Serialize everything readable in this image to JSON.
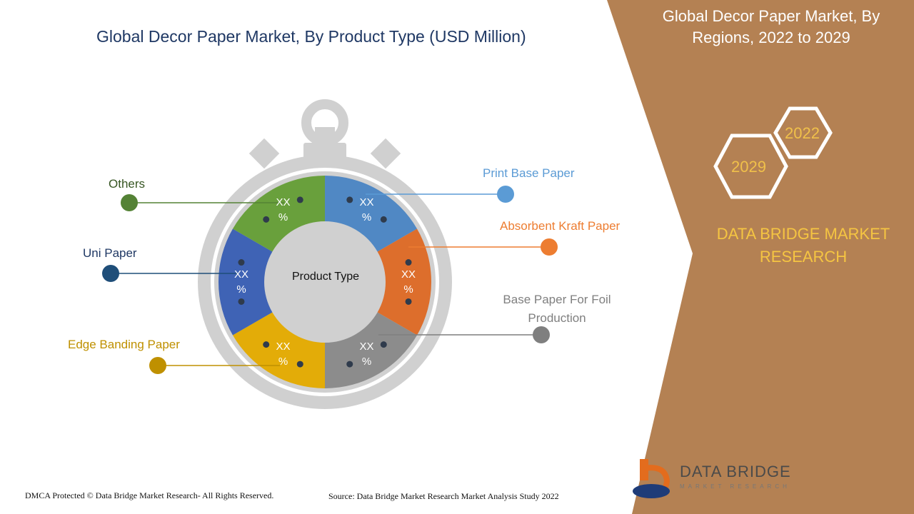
{
  "chart_data": {
    "type": "pie",
    "title": "Global Decor Paper Market, By Product Type (USD Million)",
    "center_label": "Product Type",
    "categories": [
      "Print Base Paper",
      "Absorbent Kraft Paper",
      "Base Paper For Foil Production",
      "Edge Banding Paper",
      "Uni Paper",
      "Others"
    ],
    "values": [
      1,
      1,
      1,
      1,
      1,
      1
    ],
    "value_labels": [
      "XX %",
      "XX %",
      "XX %",
      "XX %",
      "XX %",
      "XX %"
    ],
    "colors": [
      "#5088c4",
      "#dd6e2c",
      "#8c8c8c",
      "#e3ac08",
      "#3f63b5",
      "#69a03c"
    ],
    "legend_colors": [
      "#5b9bd5",
      "#ed7d31",
      "#7f7f7f",
      "#bf9000",
      "#1f4e79",
      "#548235"
    ],
    "legend_text_colors": [
      "#5b9bd5",
      "#ed7d31",
      "#7f7f7f",
      "#bf9000",
      "#1f3864",
      "#375623"
    ]
  },
  "sidebar": {
    "title": "Global Decor Paper Market, By Regions, 2022 to 2029",
    "year_start": "2022",
    "year_end": "2029",
    "brand": "DATA BRIDGE MARKET RESEARCH"
  },
  "logo": {
    "name": "DATA BRIDGE",
    "sub": "MARKET RESEARCH"
  },
  "footer": {
    "copyright": "DMCA Protected © Data Bridge Market Research- All Rights Reserved.",
    "source": "Source: Data Bridge Market Research Market Analysis Study 2022"
  },
  "colors": {
    "panel": "#b48153",
    "stopwatch": "#d0d0d0",
    "center": "#ffffff"
  }
}
